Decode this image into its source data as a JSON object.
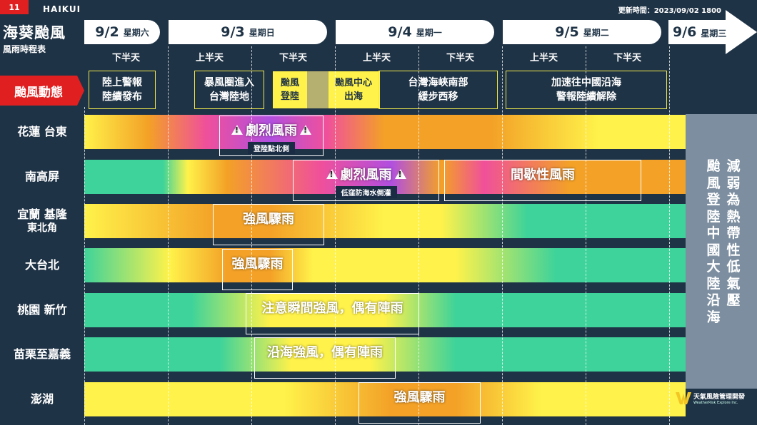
{
  "header": {
    "number": "11",
    "storm_name_en": "HAIKUI",
    "update_time": "更新時間：2023/09/02 1800",
    "title": "海葵颱風",
    "subtitle": "風雨時程表"
  },
  "dates": [
    {
      "day": "9/2",
      "weekday": "星期六"
    },
    {
      "day": "9/3",
      "weekday": "星期日"
    },
    {
      "day": "9/4",
      "weekday": "星期一"
    },
    {
      "day": "9/5",
      "weekday": "星期二"
    },
    {
      "day": "9/6",
      "weekday": "星期三"
    }
  ],
  "halves": [
    "下半天",
    "上半天",
    "下半天",
    "上半天",
    "下半天",
    "上半天",
    "下半天"
  ],
  "status": {
    "label": "颱風動態",
    "items": [
      "陸上警報\n陸續發布",
      "暴風圈進入\n台灣陸地",
      "颱風\n登陸",
      "颱風中心\n出海",
      "台灣海峽南部\n緩步西移",
      "加速往中國沿海\n警報陸續解除"
    ]
  },
  "regions": [
    {
      "name": "花蓮 台東",
      "name2": ""
    },
    {
      "name": "南高屏",
      "name2": ""
    },
    {
      "name": "宜蘭 基隆",
      "name2": "東北角"
    },
    {
      "name": "大台北",
      "name2": ""
    },
    {
      "name": "桃園 新竹",
      "name2": ""
    },
    {
      "name": "苗栗至嘉義",
      "name2": ""
    },
    {
      "name": "澎湖",
      "name2": ""
    }
  ],
  "events": {
    "hualien": {
      "title": "劇烈風雨",
      "sub": "登陸點北側"
    },
    "kaohsiung_1": {
      "title": "劇烈風雨",
      "sub": "低窪防海水倒灌"
    },
    "kaohsiung_2": {
      "title": "間歇性風雨"
    },
    "yilan": {
      "title": "強風驟雨"
    },
    "taipei": {
      "title": "強風驟雨"
    },
    "taoyuan": {
      "title": "注意瞬間強風，偶有陣雨"
    },
    "miaoli": {
      "title": "沿海強風，偶有陣雨"
    },
    "penghu": {
      "title": "強風驟雨"
    }
  },
  "side_panel": {
    "col1": "減弱為熱帶性低氣壓",
    "col2": "颱風登陸中國大陸沿海"
  },
  "logo": {
    "name": "天氣風險管理開發",
    "sub": "WeatherRisk Explore Inc."
  },
  "colors": {
    "background": "#1f3346",
    "status_red": "#e02020",
    "status_border": "#f2e84a",
    "intensity_low": "#3ed39a",
    "intensity_mid": "#fff24a",
    "intensity_high": "#f3a127",
    "intensity_severe": "#f0509a",
    "intensity_extreme": "#b14fe0"
  }
}
